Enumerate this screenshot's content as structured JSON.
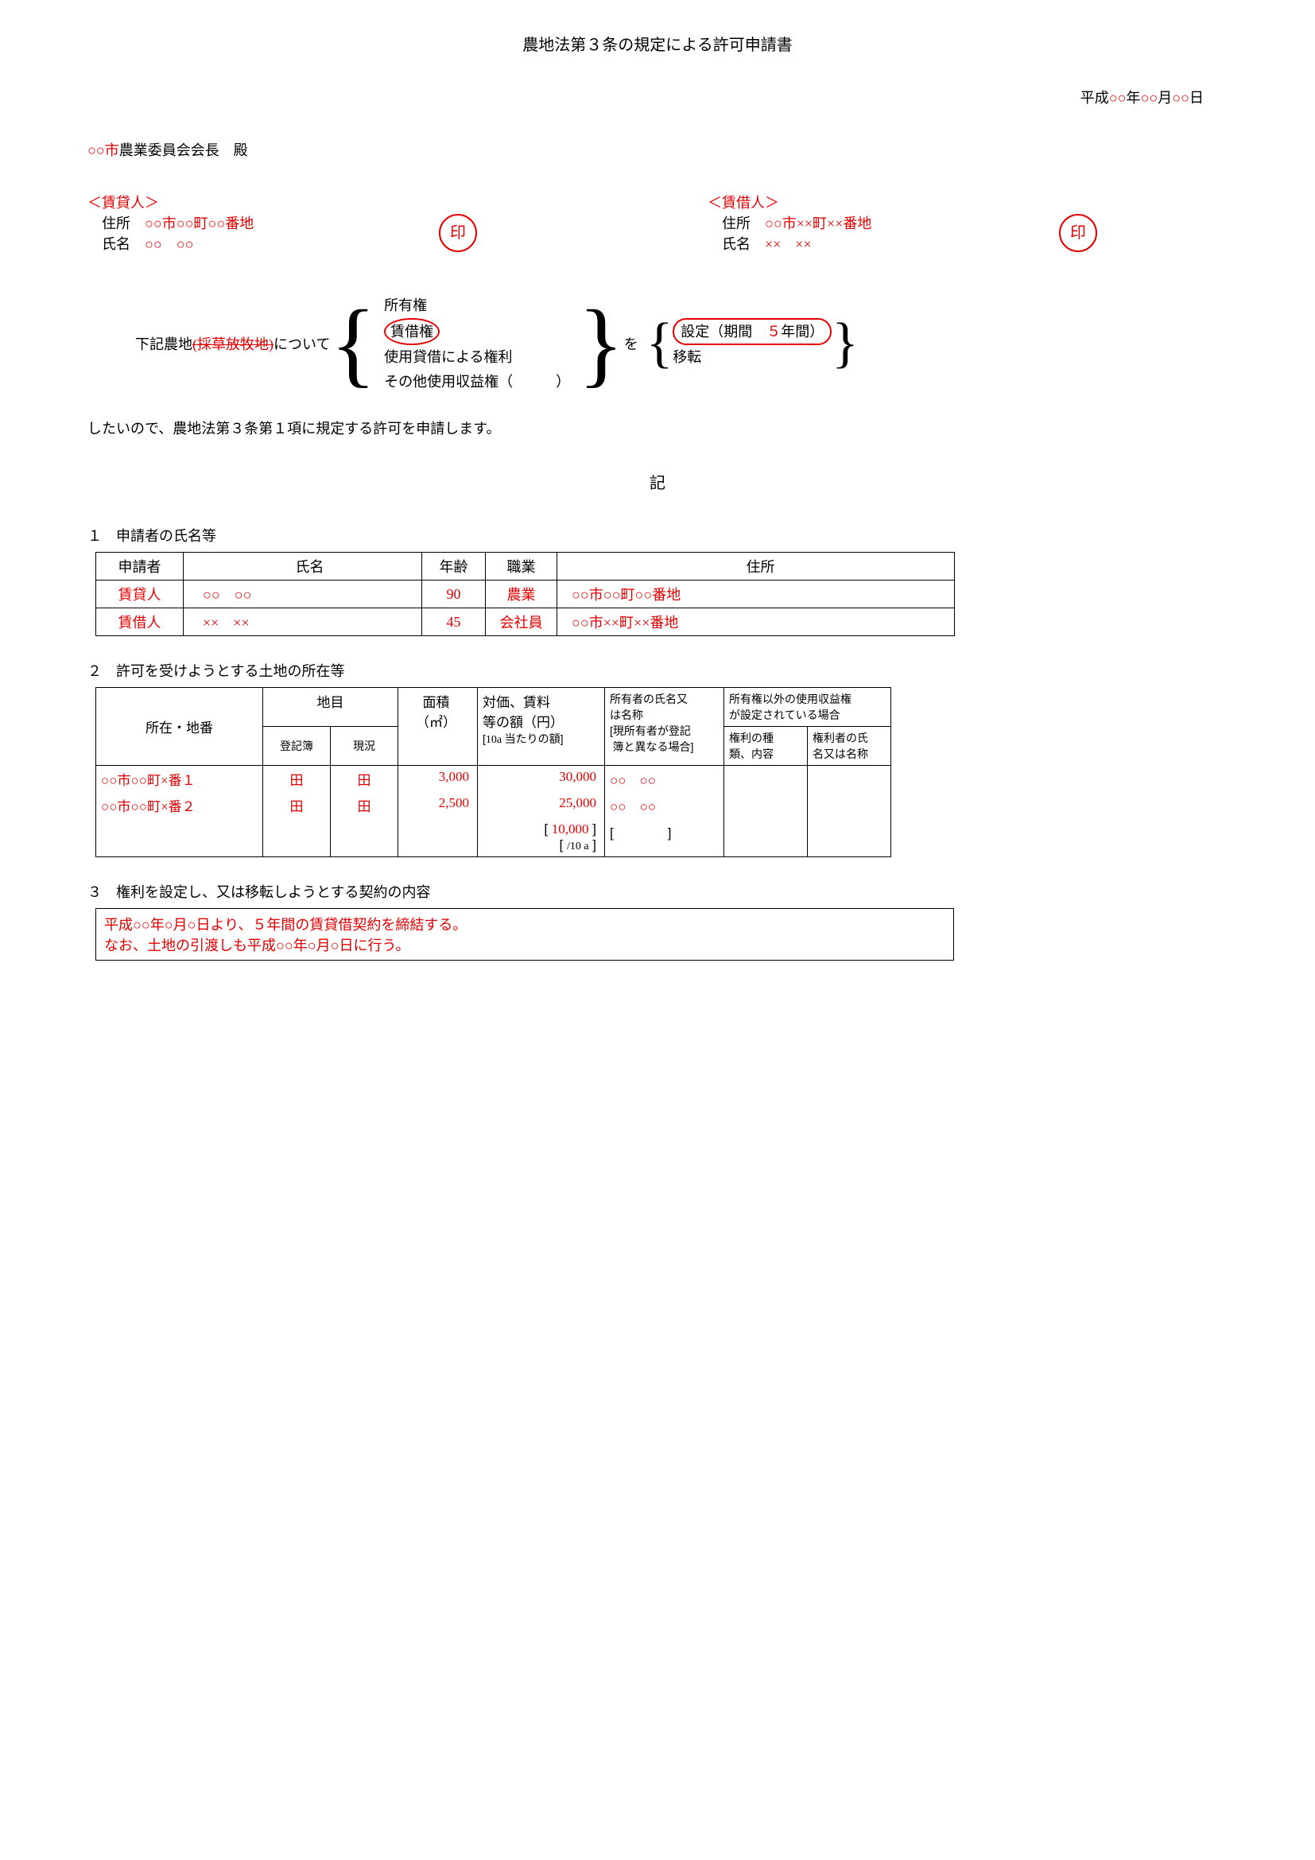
{
  "title": "農地法第３条の規定による許可申請書",
  "date_prefix": "平成",
  "date_year": "○○",
  "date_month": "○○",
  "date_day": "○○",
  "addressee_city": "○○市",
  "addressee_suffix": "農業委員会会長　殿",
  "lessor": {
    "heading": "＜賃貸人＞",
    "addr_label": "住所",
    "addr": "○○市○○町○○番地",
    "name_label": "氏名",
    "name": "○○　○○",
    "seal": "印"
  },
  "lessee": {
    "heading": "＜賃借人＞",
    "addr_label": "住所",
    "addr": "○○市××町××番地",
    "name_label": "氏名",
    "name": "××　××",
    "seal": "印"
  },
  "rights": {
    "prefix1": "下記農地",
    "strike": "(採草放牧地)",
    "prefix2": "について",
    "opt1": "所有権",
    "opt2": "賃借権",
    "opt3": "使用貸借による権利",
    "opt4": "その他使用収益権（　　　）",
    "wo": "を",
    "set_label": "設定（期間　",
    "set_years": "５",
    "set_suffix": "年間）",
    "transfer": "移転"
  },
  "body": "したいので、農地法第３条第１項に規定する許可を申請します。",
  "ki": "記",
  "sec1": {
    "head": "１　申請者の氏名等",
    "h_app": "申請者",
    "h_name": "氏名",
    "h_age": "年齢",
    "h_occ": "職業",
    "h_addr": "住所",
    "rows": [
      {
        "app": "賃貸人",
        "name": "○○　○○",
        "age": "90",
        "occ": "農業",
        "addr": "○○市○○町○○番地"
      },
      {
        "app": "賃借人",
        "name": "××　××",
        "age": "45",
        "occ": "会社員",
        "addr": "○○市××町××番地"
      }
    ]
  },
  "sec2": {
    "head": "２　許可を受けようとする土地の所在等",
    "h_loc": "所在・地番",
    "h_use": "地目",
    "h_reg": "登記簿",
    "h_cur": "現況",
    "h_area": "面積",
    "h_area_unit": "（㎡）",
    "h_price": "対価、賃料",
    "h_price2": "等の額（円）",
    "h_price_sub": "10a 当たりの額",
    "h_owner": "所有者の氏名又",
    "h_owner2": "は名称",
    "h_owner_sub1": "現所有者が登記",
    "h_owner_sub2": "簿と異なる場合",
    "h_other": "所有権以外の使用収益権",
    "h_other2": "が設定されている場合",
    "h_rtype": "権利の種",
    "h_rtype2": "類、内容",
    "h_rname": "権利者の氏",
    "h_rname2": "名又は名称",
    "rows": [
      {
        "loc": "○○市○○町×番１",
        "reg": "田",
        "cur": "田",
        "area": "3,000",
        "price": "30,000",
        "owner": "○○　○○"
      },
      {
        "loc": "○○市○○町×番２",
        "reg": "田",
        "cur": "田",
        "area": "2,500",
        "price": "25,000",
        "owner": "○○　○○"
      }
    ],
    "per10a_val": "10,000",
    "per10a_unit": "/10 a"
  },
  "sec3": {
    "head": "３　権利を設定し、又は移転しようとする契約の内容",
    "line1": "平成○○年○月○日より、５年間の賃貸借契約を締結する。",
    "line2": "なお、土地の引渡しも平成○○年○月○日に行う。"
  }
}
